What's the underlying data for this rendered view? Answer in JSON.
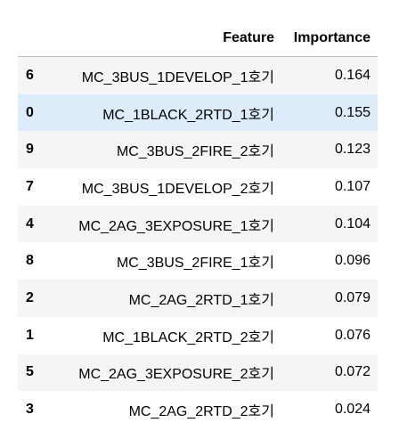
{
  "table": {
    "columns": [
      "Feature",
      "Importance"
    ],
    "rows": [
      {
        "index": "6",
        "feature": "MC_3BUS_1DEVELOP_1호기",
        "importance": "0.164"
      },
      {
        "index": "0",
        "feature": "MC_1BLACK_2RTD_1호기",
        "importance": "0.155"
      },
      {
        "index": "9",
        "feature": "MC_3BUS_2FIRE_2호기",
        "importance": "0.123"
      },
      {
        "index": "7",
        "feature": "MC_3BUS_1DEVELOP_2호기",
        "importance": "0.107"
      },
      {
        "index": "4",
        "feature": "MC_2AG_3EXPOSURE_1호기",
        "importance": "0.104"
      },
      {
        "index": "8",
        "feature": "MC_3BUS_2FIRE_1호기",
        "importance": "0.096"
      },
      {
        "index": "2",
        "feature": "MC_2AG_2RTD_1호기",
        "importance": "0.079"
      },
      {
        "index": "1",
        "feature": "MC_1BLACK_2RTD_2호기",
        "importance": "0.076"
      },
      {
        "index": "5",
        "feature": "MC_2AG_3EXPOSURE_2호기",
        "importance": "0.072"
      },
      {
        "index": "3",
        "feature": "MC_2AG_2RTD_2호기",
        "importance": "0.024"
      }
    ]
  },
  "colors": {
    "stripe": "#f5f5f5",
    "hover_row": "#dcecfb",
    "header_border": "#bdbdbd"
  }
}
